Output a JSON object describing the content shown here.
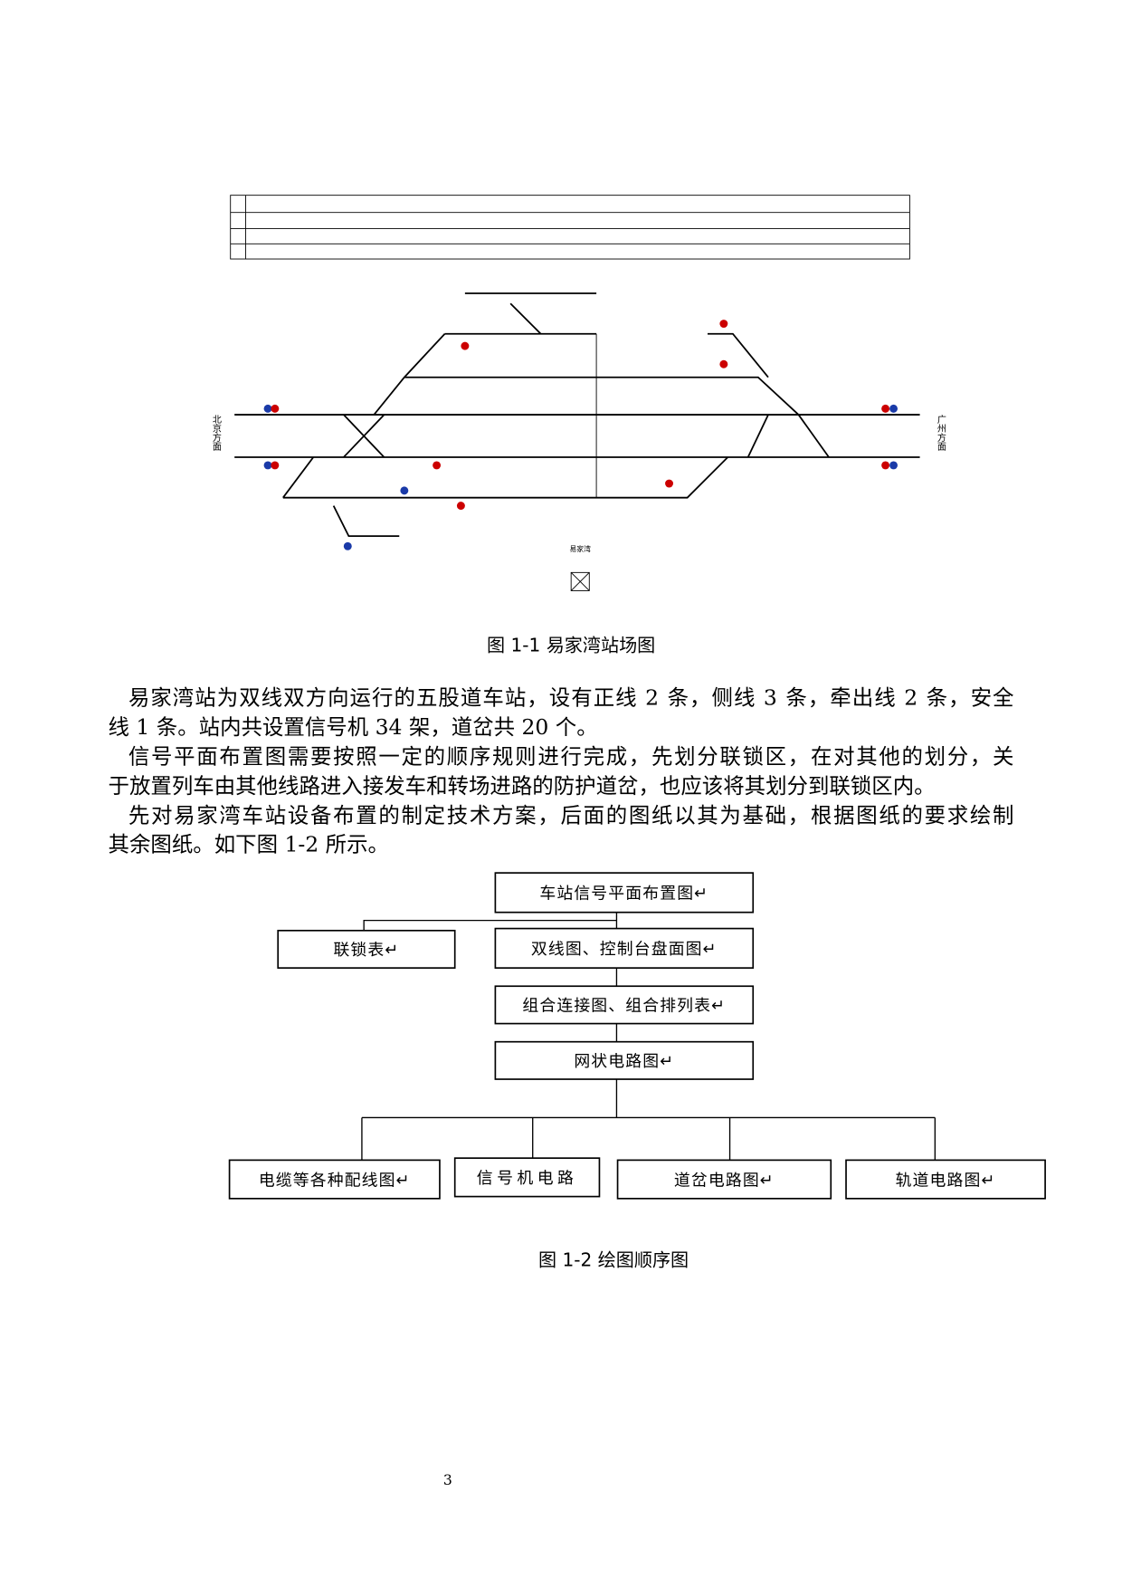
{
  "figure1": {
    "left_direction": "北京方面",
    "right_direction": "广州方面",
    "station_name": "易家湾",
    "caption": "图 1-1  易家湾站场图"
  },
  "paragraphs": [
    {
      "lines": [
        "易家湾站为双线双方向运行的五股道车站，设有正线 2 条，侧线 3 条，牵出线 2 条，安全",
        "线 1 条。站内共设置信号机 34 架，道岔共 20 个。"
      ]
    },
    {
      "lines": [
        "信号平面布置图需要按照一定的顺序规则进行完成，先划分联锁区，在对其他的划分，关",
        "于放置列车由其他线路进入接发车和转场进路的防护道岔，也应该将其划分到联锁区内。"
      ]
    },
    {
      "lines": [
        "先对易家湾车站设备布置的制定技术方案，后面的图纸以其为基础，根据图纸的要求绘制",
        "其余图纸。如下图 1-2 所示。"
      ]
    }
  ],
  "figure2": {
    "nodes": [
      {
        "label": "车站信号平面布置图↵"
      },
      {
        "label": "联锁表↵"
      },
      {
        "label": "双线图、控制台盘面图↵"
      },
      {
        "label": "组合连接图、组合排列表↵"
      },
      {
        "label": "网状电路图↵"
      },
      {
        "label": "电缆等各种配线图↵"
      },
      {
        "label": "信号机电路"
      },
      {
        "label": "道岔电路图↵"
      },
      {
        "label": "轨道电路图↵"
      }
    ],
    "caption": "图  1-2 绘图顺序图"
  },
  "page_number": "3"
}
